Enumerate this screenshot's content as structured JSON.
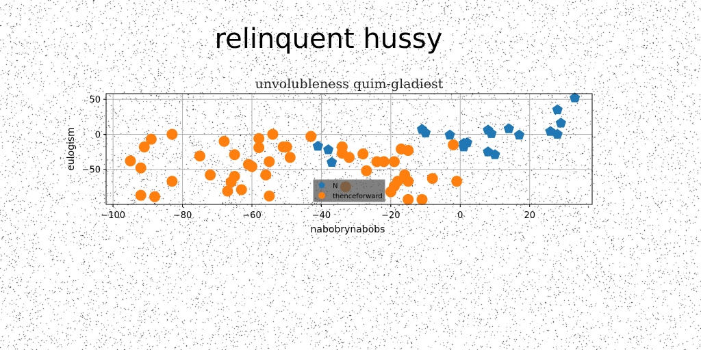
{
  "figure": {
    "suptitle": "relinquent hussy"
  },
  "chart_data": {
    "type": "scatter",
    "title": "unvolubleness quim-gladiest",
    "xlabel": "nabobrynabobs",
    "ylabel": "eulogism",
    "xlim": [
      -102,
      38
    ],
    "ylim": [
      -100,
      58
    ],
    "xticks": [
      -100,
      -80,
      -60,
      -40,
      -20,
      0,
      20
    ],
    "yticks": [
      -50,
      0,
      50
    ],
    "grid": true,
    "legend_position": "lower center",
    "series": [
      {
        "name": "N",
        "color": "#1f77b4",
        "marker": "pentagon",
        "points": [
          [
            -41,
            -17
          ],
          [
            -38,
            -22
          ],
          [
            -37,
            -40
          ],
          [
            -11,
            7
          ],
          [
            -10,
            2
          ],
          [
            -3,
            -1
          ],
          [
            1,
            -13
          ],
          [
            1,
            -18
          ],
          [
            2,
            -12
          ],
          [
            8,
            6
          ],
          [
            9,
            1
          ],
          [
            8,
            -25
          ],
          [
            10,
            -29
          ],
          [
            14,
            8
          ],
          [
            17,
            -1
          ],
          [
            26,
            4
          ],
          [
            28,
            0
          ],
          [
            28,
            35
          ],
          [
            29,
            16
          ],
          [
            33,
            52
          ]
        ]
      },
      {
        "name": "thenceforward",
        "color": "#ff7f0e",
        "marker": "circle",
        "points": [
          [
            -95,
            -38
          ],
          [
            -92,
            -48
          ],
          [
            -92,
            -87
          ],
          [
            -91,
            -18
          ],
          [
            -89,
            -7
          ],
          [
            -88,
            -89
          ],
          [
            -83,
            0
          ],
          [
            -83,
            -67
          ],
          [
            -75,
            -31
          ],
          [
            -72,
            -58
          ],
          [
            -68,
            -10
          ],
          [
            -67,
            -81
          ],
          [
            -66,
            -68
          ],
          [
            -65,
            -60
          ],
          [
            -65,
            -29
          ],
          [
            -63,
            -79
          ],
          [
            -61,
            -43
          ],
          [
            -60,
            -46
          ],
          [
            -58,
            -6
          ],
          [
            -58,
            -19
          ],
          [
            -56,
            -58
          ],
          [
            -55,
            -39
          ],
          [
            -55,
            -88
          ],
          [
            -54,
            0
          ],
          [
            -51,
            -18
          ],
          [
            -50,
            -18
          ],
          [
            -49,
            -33
          ],
          [
            -43,
            -3
          ],
          [
            -34,
            -18
          ],
          [
            -34,
            -27
          ],
          [
            -33,
            -75
          ],
          [
            -32,
            -33
          ],
          [
            -28,
            -28
          ],
          [
            -27,
            -52
          ],
          [
            -24,
            -39
          ],
          [
            -22,
            -39
          ],
          [
            -20,
            -82
          ],
          [
            -19,
            -39
          ],
          [
            -19,
            -74
          ],
          [
            -18,
            -67
          ],
          [
            -17,
            -21
          ],
          [
            -16,
            -58
          ],
          [
            -15,
            -67
          ],
          [
            -15,
            -23
          ],
          [
            -15,
            -93
          ],
          [
            -11,
            -93
          ],
          [
            -8,
            -63
          ],
          [
            -2,
            -15
          ],
          [
            -1,
            -67
          ]
        ]
      }
    ]
  }
}
